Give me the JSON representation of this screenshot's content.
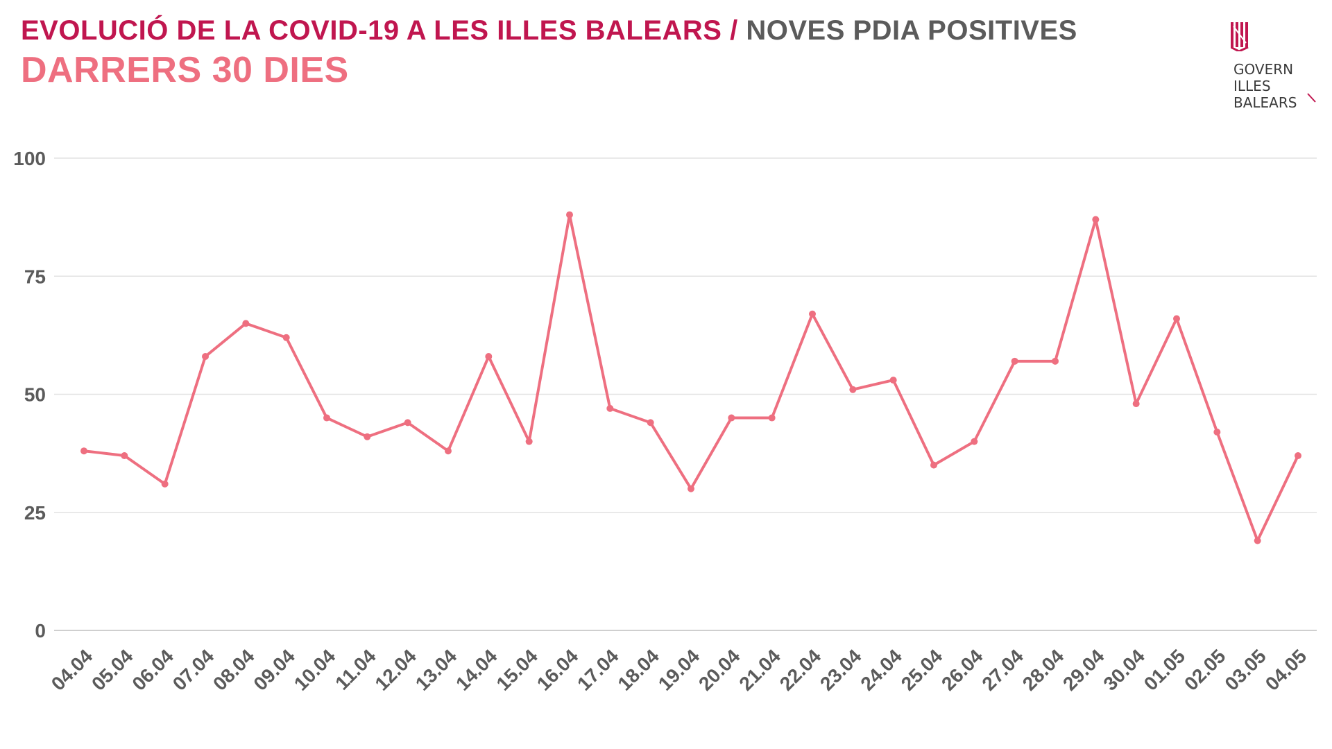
{
  "header": {
    "title_main": "EVOLUCIÓ DE LA COVID-19 A LES ILLES BALEARS",
    "title_separator": " / ",
    "title_sub": "NOVES PDIA POSITIVES",
    "subtitle": "DARRERS 30 DIES"
  },
  "logo": {
    "icon": "govern-illes-balears-logo-icon",
    "text": "GOVERN\nILLES\nBALEARS"
  },
  "colors": {
    "title": "#c0164f",
    "subtitle": "#ee6f80",
    "series": "#ee6f80",
    "text": "#5b5b5b"
  },
  "chart_data": {
    "type": "line",
    "categories": [
      "04.04",
      "05.04",
      "06.04",
      "07.04",
      "08.04",
      "09.04",
      "10.04",
      "11.04",
      "12.04",
      "13.04",
      "14.04",
      "15.04",
      "16.04",
      "17.04",
      "18.04",
      "19.04",
      "20.04",
      "21.04",
      "22.04",
      "23.04",
      "24.04",
      "25.04",
      "26.04",
      "27.04",
      "28.04",
      "29.04",
      "30.04",
      "01.05",
      "02.05",
      "03.05",
      "04.05"
    ],
    "series": [
      {
        "values": [
          38,
          37,
          31,
          58,
          65,
          62,
          45,
          41,
          44,
          38,
          58,
          40,
          88,
          47,
          44,
          30,
          45,
          45,
          67,
          51,
          53,
          35,
          40,
          57,
          57,
          87,
          48,
          66,
          42,
          19,
          37
        ]
      }
    ],
    "ylim": [
      0,
      100
    ],
    "yticks": [
      0,
      25,
      50,
      75,
      100
    ],
    "grid": true,
    "legend": "none",
    "xlabel": "",
    "ylabel": ""
  }
}
